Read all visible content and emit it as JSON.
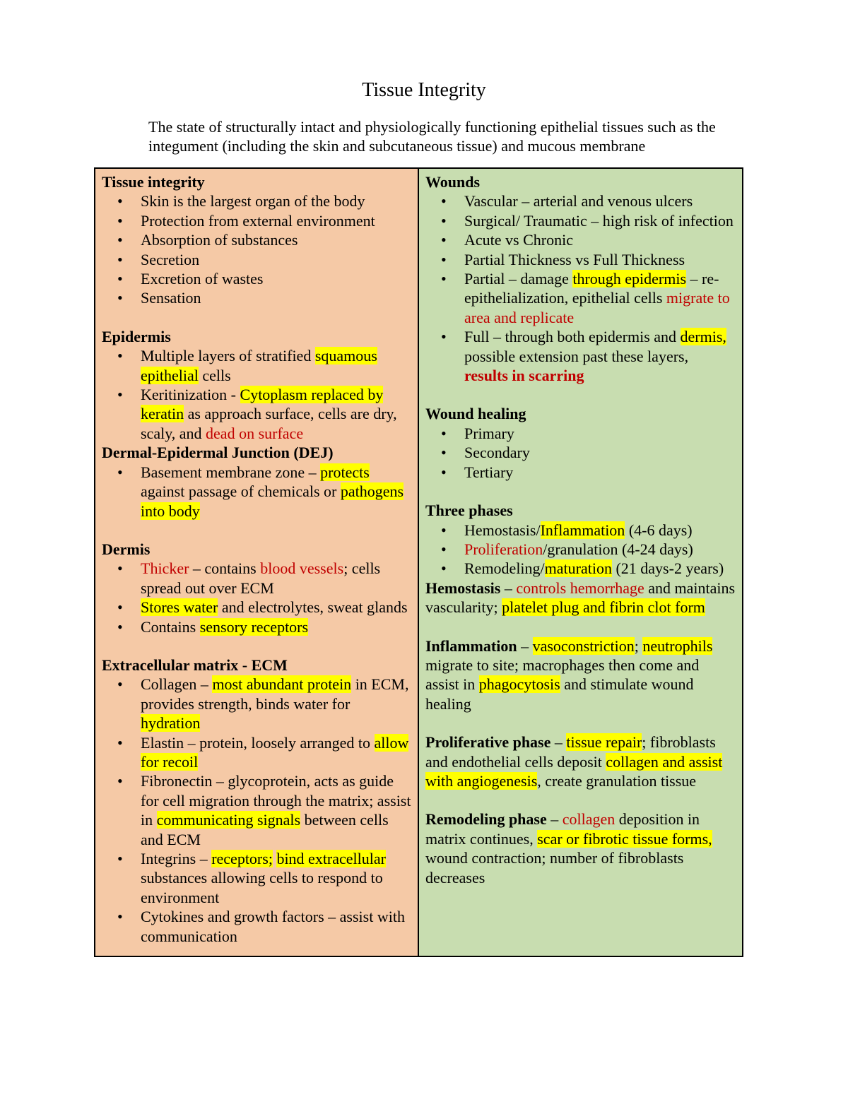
{
  "page": {
    "title": "Tissue Integrity",
    "intro": "The state of structurally intact and physiologically functioning epithelial tissues such as the integument (including the skin and subcutaneous tissue) and mucous membrane"
  },
  "colors": {
    "left_column_bg": "#F5C9A6",
    "right_column_bg": "#C8DDB0",
    "highlight": "#FFFF00",
    "emphasis_red": "#C00000",
    "border": "#000000"
  },
  "table": {
    "left": {
      "blocks": [
        {
          "type": "heading",
          "runs": [
            {
              "t": "Tissue integrity"
            }
          ]
        },
        {
          "type": "bullet",
          "runs": [
            {
              "t": "Skin is the largest organ of the body"
            }
          ]
        },
        {
          "type": "bullet",
          "runs": [
            {
              "t": "Protection from external environment"
            }
          ]
        },
        {
          "type": "bullet",
          "runs": [
            {
              "t": "Absorption of substances"
            }
          ]
        },
        {
          "type": "bullet",
          "runs": [
            {
              "t": "Secretion"
            }
          ]
        },
        {
          "type": "bullet",
          "runs": [
            {
              "t": "Excretion of wastes"
            }
          ]
        },
        {
          "type": "bullet",
          "runs": [
            {
              "t": "Sensation"
            }
          ]
        },
        {
          "type": "spacer"
        },
        {
          "type": "heading",
          "runs": [
            {
              "t": "Epidermis"
            }
          ]
        },
        {
          "type": "bullet",
          "runs": [
            {
              "t": "Multiple layers of stratified "
            },
            {
              "t": "squamous epithelial",
              "s": "hl"
            },
            {
              "t": " cells"
            }
          ]
        },
        {
          "type": "bullet",
          "runs": [
            {
              "t": "Keritinization - "
            },
            {
              "t": "Cytoplasm replaced by keratin",
              "s": "hl"
            },
            {
              "t": " as approach surface, cells are dry, scaly, and "
            },
            {
              "t": "dead on surface",
              "s": "red"
            }
          ]
        },
        {
          "type": "heading",
          "runs": [
            {
              "t": "Dermal-Epidermal Junction (DEJ)"
            }
          ]
        },
        {
          "type": "bullet",
          "runs": [
            {
              "t": "Basement membrane zone – "
            },
            {
              "t": "protects",
              "s": "hl"
            },
            {
              "t": " against passage of chemicals or "
            },
            {
              "t": "pathogens into body",
              "s": "hl"
            }
          ]
        },
        {
          "type": "spacer"
        },
        {
          "type": "heading",
          "runs": [
            {
              "t": "Dermis"
            }
          ]
        },
        {
          "type": "bullet",
          "runs": [
            {
              "t": "Thicker",
              "s": "red"
            },
            {
              "t": " – contains "
            },
            {
              "t": "blood vessels",
              "s": "red"
            },
            {
              "t": "; cells spread out over ECM"
            }
          ]
        },
        {
          "type": "bullet",
          "runs": [
            {
              "t": "Stores water",
              "s": "hl"
            },
            {
              "t": " and electrolytes, sweat glands"
            }
          ]
        },
        {
          "type": "bullet",
          "runs": [
            {
              "t": "Contains "
            },
            {
              "t": "sensory receptors",
              "s": "hl"
            }
          ]
        },
        {
          "type": "spacer"
        },
        {
          "type": "heading",
          "runs": [
            {
              "t": "Extracellular matrix - ECM"
            }
          ]
        },
        {
          "type": "bullet",
          "runs": [
            {
              "t": "Collagen – "
            },
            {
              "t": "most abundant protein",
              "s": "hl"
            },
            {
              "t": " in ECM, provides strength, binds water for "
            },
            {
              "t": "hydration",
              "s": "hl"
            }
          ]
        },
        {
          "type": "bullet",
          "runs": [
            {
              "t": "Elastin – protein, loosely arranged to "
            },
            {
              "t": "allow for recoil",
              "s": "hl"
            }
          ]
        },
        {
          "type": "bullet",
          "runs": [
            {
              "t": "Fibronectin – glycoprotein, acts as guide for cell migration through the matrix; assist in "
            },
            {
              "t": "communicating signals",
              "s": "hl"
            },
            {
              "t": " between cells and ECM"
            }
          ]
        },
        {
          "type": "bullet",
          "runs": [
            {
              "t": "Integrins – "
            },
            {
              "t": "receptors;",
              "s": "hl"
            },
            {
              "t": " "
            },
            {
              "t": "bind extracellular",
              "s": "hl"
            },
            {
              "t": " substances allowing cells to respond to environment"
            }
          ]
        },
        {
          "type": "bullet",
          "runs": [
            {
              "t": "Cytokines and growth factors – assist with communication"
            }
          ]
        }
      ]
    },
    "right": {
      "blocks": [
        {
          "type": "heading",
          "runs": [
            {
              "t": "Wounds"
            }
          ]
        },
        {
          "type": "bullet",
          "runs": [
            {
              "t": "Vascular – arterial and venous ulcers"
            }
          ]
        },
        {
          "type": "bullet",
          "runs": [
            {
              "t": "Surgical/ Traumatic – high risk of infection"
            }
          ]
        },
        {
          "type": "bullet",
          "runs": [
            {
              "t": "Acute vs Chronic"
            }
          ]
        },
        {
          "type": "bullet",
          "runs": [
            {
              "t": "Partial Thickness vs Full Thickness"
            }
          ]
        },
        {
          "type": "bullet",
          "runs": [
            {
              "t": "Partial – damage "
            },
            {
              "t": "through epidermis",
              "s": "hl"
            },
            {
              "t": " – re-epithelialization, epithelial cells "
            },
            {
              "t": "migrate to area and replicate",
              "s": "red"
            }
          ]
        },
        {
          "type": "bullet",
          "runs": [
            {
              "t": "Full – through both epidermis and "
            },
            {
              "t": "dermis,",
              "s": "hl"
            },
            {
              "t": " possible extension past these layers, "
            },
            {
              "t": "results in scarring",
              "s": "boldred"
            }
          ]
        },
        {
          "type": "spacer"
        },
        {
          "type": "heading",
          "runs": [
            {
              "t": "Wound healing"
            }
          ]
        },
        {
          "type": "bullet",
          "runs": [
            {
              "t": "Primary"
            }
          ]
        },
        {
          "type": "bullet",
          "runs": [
            {
              "t": "Secondary"
            }
          ]
        },
        {
          "type": "bullet",
          "runs": [
            {
              "t": "Tertiary"
            }
          ]
        },
        {
          "type": "spacer"
        },
        {
          "type": "heading",
          "runs": [
            {
              "t": "Three phases"
            }
          ]
        },
        {
          "type": "bullet",
          "runs": [
            {
              "t": "Hemostasis/"
            },
            {
              "t": "Inflammation",
              "s": "hl"
            },
            {
              "t": " (4-6 days)"
            }
          ]
        },
        {
          "type": "bullet",
          "runs": [
            {
              "t": "Proliferation",
              "s": "red"
            },
            {
              "t": "/granulation (4-24 days)"
            }
          ]
        },
        {
          "type": "bullet",
          "runs": [
            {
              "t": "Remodeling/"
            },
            {
              "t": "maturation",
              "s": "hl"
            },
            {
              "t": " (21 days-2 years)"
            }
          ]
        },
        {
          "type": "para",
          "runs": [
            {
              "t": "Hemostasis",
              "s": "b"
            },
            {
              "t": " – "
            },
            {
              "t": "controls hemorrhage",
              "s": "red"
            },
            {
              "t": " and maintains vascularity; "
            },
            {
              "t": "platelet plug and fibrin clot form",
              "s": "hl"
            }
          ]
        },
        {
          "type": "spacer"
        },
        {
          "type": "para",
          "runs": [
            {
              "t": "Inflammation",
              "s": "b"
            },
            {
              "t": " – "
            },
            {
              "t": "vasoconstriction",
              "s": "hl"
            },
            {
              "t": "; "
            },
            {
              "t": "neutrophils",
              "s": "hl"
            },
            {
              "t": " migrate to site; macrophages then come and assist in "
            },
            {
              "t": "phagocytosis",
              "s": "hl"
            },
            {
              "t": " and stimulate wound healing"
            }
          ]
        },
        {
          "type": "spacer"
        },
        {
          "type": "para",
          "runs": [
            {
              "t": "Proliferative phase",
              "s": "b"
            },
            {
              "t": " – "
            },
            {
              "t": "tissue repair",
              "s": "hl"
            },
            {
              "t": "; fibroblasts and endothelial cells deposit "
            },
            {
              "t": "collagen and assist with angiogenesis",
              "s": "hl"
            },
            {
              "t": ", create granulation tissue"
            }
          ]
        },
        {
          "type": "spacer"
        },
        {
          "type": "para",
          "runs": [
            {
              "t": "Remodeling phase",
              "s": "b"
            },
            {
              "t": " – "
            },
            {
              "t": "collagen",
              "s": "red"
            },
            {
              "t": " deposition in matrix continues, "
            },
            {
              "t": "scar or fibrotic tissue forms,",
              "s": "hl"
            },
            {
              "t": " wound contraction; number of fibroblasts decreases"
            }
          ]
        }
      ]
    }
  }
}
